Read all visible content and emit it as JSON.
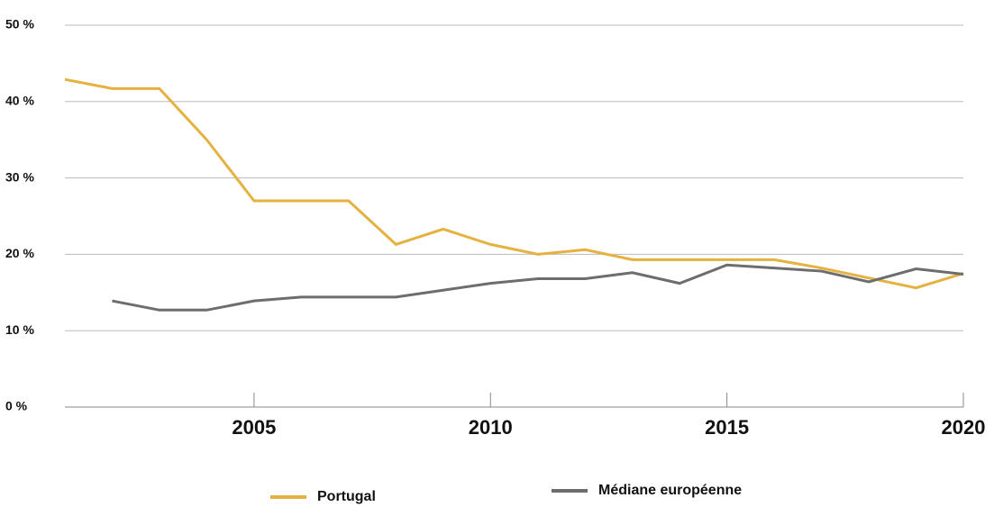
{
  "chart_data": {
    "type": "line",
    "x": [
      2001,
      2002,
      2003,
      2004,
      2005,
      2006,
      2007,
      2008,
      2009,
      2010,
      2011,
      2012,
      2013,
      2014,
      2015,
      2016,
      2017,
      2018,
      2019,
      2020
    ],
    "series": [
      {
        "name": "Portugal",
        "color": "#e5b140",
        "values": [
          42.9,
          41.7,
          41.7,
          35,
          27,
          27,
          27,
          21.3,
          23.3,
          21.3,
          20,
          20.6,
          19.3,
          19.3,
          19.3,
          19.3,
          18.2,
          16.9,
          15.6,
          17.5
        ]
      },
      {
        "name": "Médiane européenne",
        "color": "#6d6d6d",
        "values": [
          null,
          13.9,
          12.7,
          12.7,
          13.9,
          14.4,
          14.4,
          14.4,
          15.3,
          16.2,
          16.8,
          16.8,
          17.6,
          16.2,
          18.6,
          18.2,
          17.8,
          16.4,
          18.1,
          17.4
        ]
      }
    ],
    "xlim": [
      2001,
      2020
    ],
    "xticks": [
      2005,
      2010,
      2015,
      2020
    ],
    "ylim": [
      0,
      50
    ],
    "yticks": [
      {
        "value": 0,
        "label": "0 %"
      },
      {
        "value": 10,
        "label": "10 %"
      },
      {
        "value": 20,
        "label": "20 %"
      },
      {
        "value": 30,
        "label": "30 %"
      },
      {
        "value": 40,
        "label": "40 %"
      },
      {
        "value": 50,
        "label": "50 %"
      }
    ],
    "grid": true
  }
}
